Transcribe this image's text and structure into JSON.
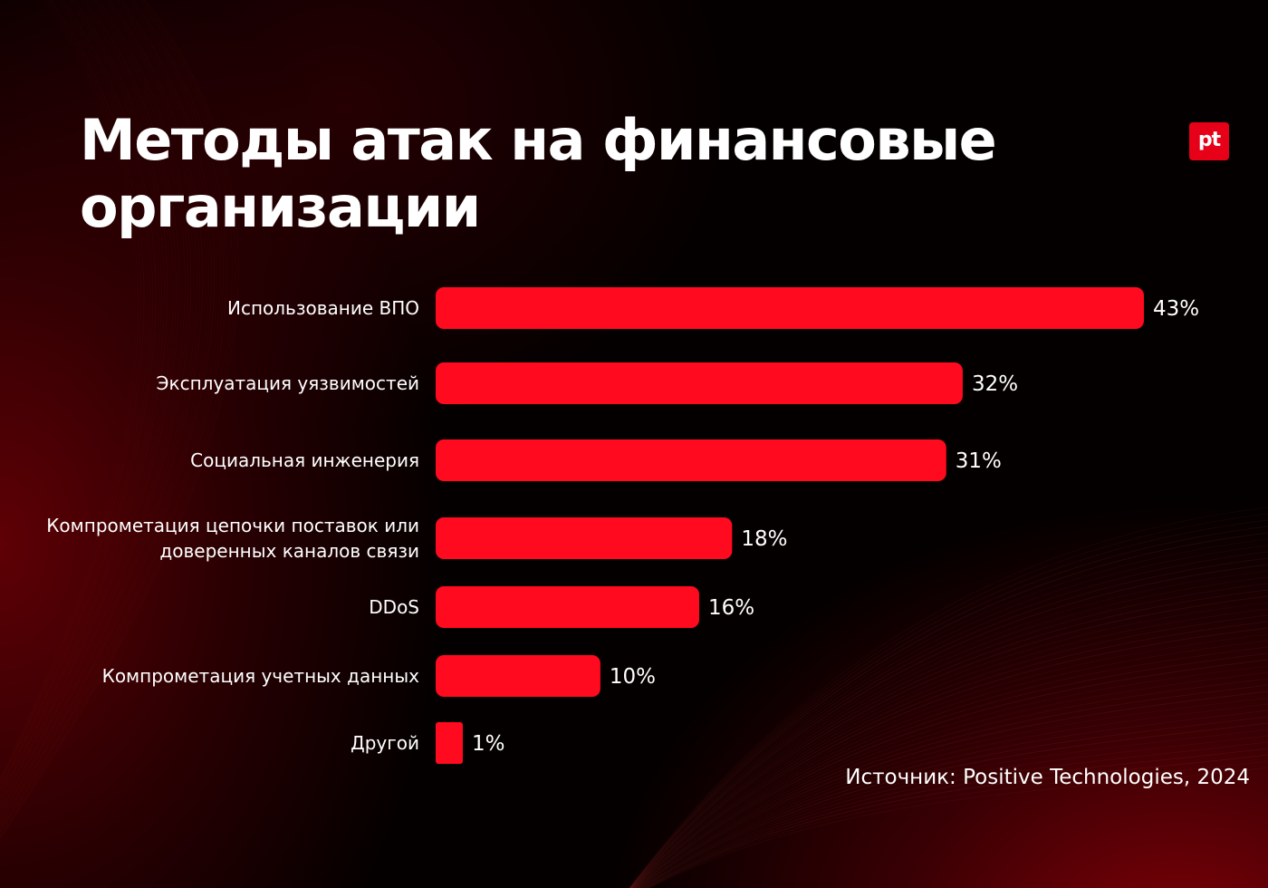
{
  "title": {
    "line1": "Методы атак на финансовые",
    "line2": "организации"
  },
  "logo": {
    "text": "pt",
    "color": "#e60018"
  },
  "source": "Источник: Positive Technologies, 2024",
  "colors": {
    "bar": "#ff0a1e",
    "text": "#ffffff",
    "background": "#050000",
    "glow": "#a0000a"
  },
  "chart_data": {
    "type": "bar",
    "orientation": "horizontal",
    "categories": [
      [
        "Использование ВПО"
      ],
      [
        "Эксплуатация уязвимостей"
      ],
      [
        "Социальная инженерия"
      ],
      [
        "Компрометация цепочки поставок или",
        "доверенных каналов связи"
      ],
      [
        "DDoS"
      ],
      [
        "Компрометация учетных данных"
      ],
      [
        "Другой"
      ]
    ],
    "values": [
      43,
      32,
      31,
      18,
      16,
      10,
      1
    ],
    "value_labels": [
      "43%",
      "32%",
      "31%",
      "18%",
      "16%",
      "10%",
      "1%"
    ],
    "unit": "%",
    "grid": false,
    "legend": "none"
  }
}
